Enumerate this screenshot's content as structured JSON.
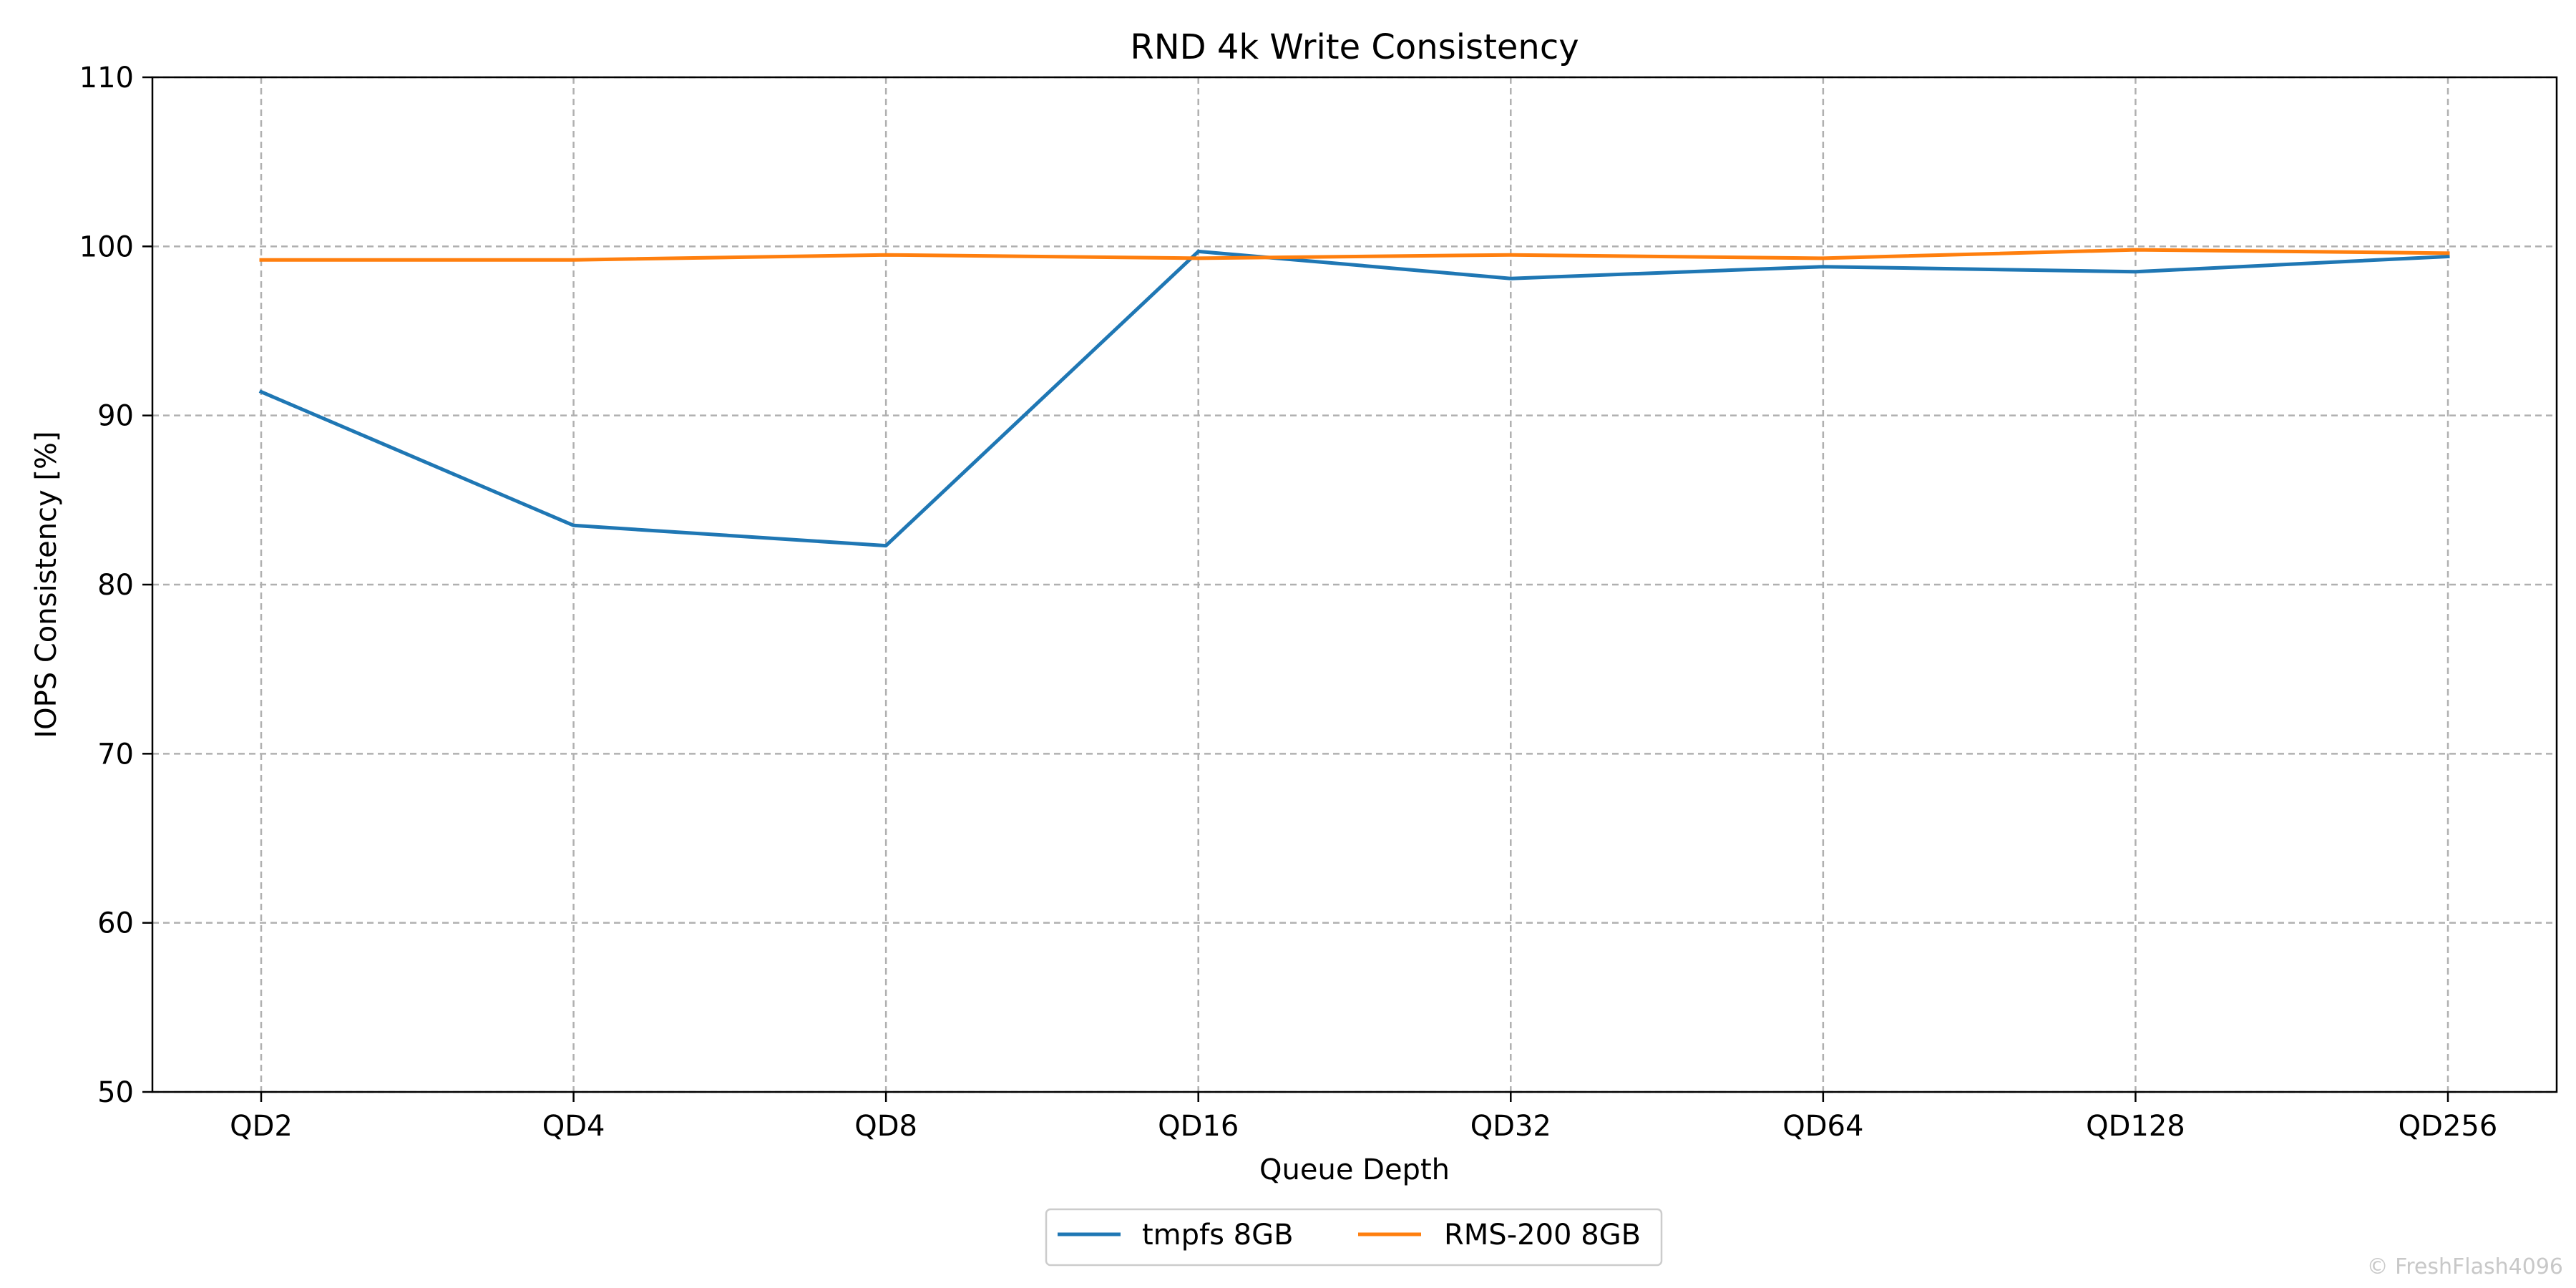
{
  "chart_data": {
    "type": "line",
    "title": "RND 4k Write Consistency",
    "xlabel": "Queue Depth",
    "ylabel": "IOPS Consistency [%]",
    "categories": [
      "QD2",
      "QD4",
      "QD8",
      "QD16",
      "QD32",
      "QD64",
      "QD128",
      "QD256"
    ],
    "ylim": [
      50,
      110
    ],
    "yticks": [
      50,
      60,
      70,
      80,
      90,
      100,
      110
    ],
    "grid": true,
    "legend_position": "bottom-center",
    "series": [
      {
        "name": "tmpfs 8GB",
        "color": "#1f77b4",
        "values": [
          91.4,
          83.5,
          82.3,
          99.7,
          98.1,
          98.8,
          98.5,
          99.4
        ]
      },
      {
        "name": "RMS-200 8GB",
        "color": "#ff7f0e",
        "values": [
          99.2,
          99.2,
          99.5,
          99.3,
          99.5,
          99.3,
          99.8,
          99.6
        ]
      }
    ]
  },
  "watermark": "© FreshFlash4096"
}
